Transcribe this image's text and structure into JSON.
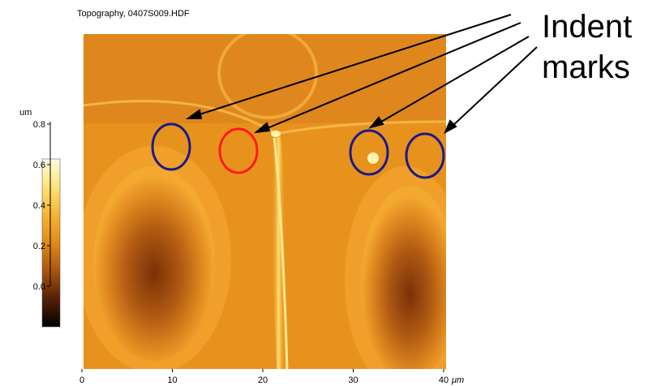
{
  "title": "Topography, 0407S009.HDF",
  "colorbar": {
    "unit": "um",
    "ticks": [
      "0.8",
      "0.6",
      "0.4",
      "0.2",
      "0.0"
    ]
  },
  "x_axis": {
    "ticks": [
      "0",
      "10",
      "20",
      "30",
      "40"
    ],
    "unit": "μm"
  },
  "annotation": {
    "lines": [
      "Indent",
      "marks"
    ]
  }
}
